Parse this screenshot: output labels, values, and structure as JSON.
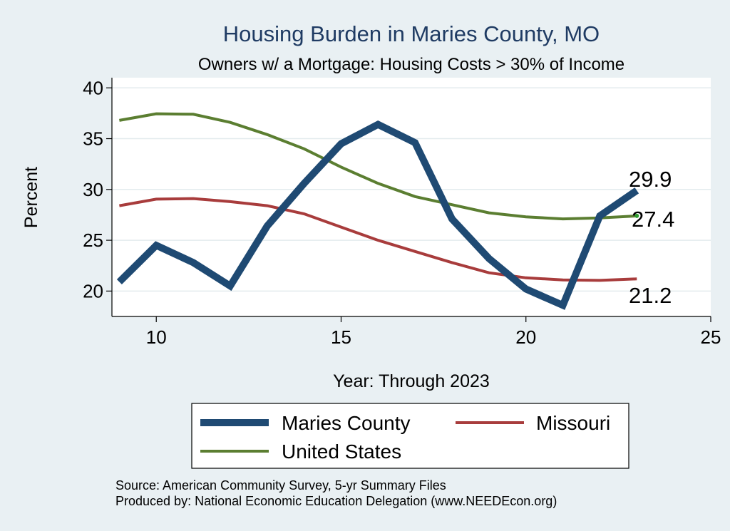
{
  "chart_data": {
    "type": "line",
    "title": "Housing Burden in Maries County, MO",
    "subtitle": "Owners w/ a Mortgage: Housing Costs > 30% of Income",
    "xlabel": "Year: Through 2023",
    "ylabel": "Percent",
    "xlim": [
      8.8,
      25
    ],
    "ylim": [
      17.5,
      41
    ],
    "xticks": [
      10,
      15,
      20,
      25
    ],
    "yticks": [
      20,
      25,
      30,
      35,
      40
    ],
    "grid": true,
    "legend_position": "bottom",
    "x": [
      9,
      10,
      11,
      12,
      13,
      14,
      15,
      16,
      17,
      18,
      19,
      20,
      21,
      22,
      23
    ],
    "series": [
      {
        "name": "Maries County",
        "color": "#1f4a73",
        "values": [
          20.9,
          24.5,
          22.8,
          20.5,
          26.4,
          30.6,
          34.5,
          36.4,
          34.6,
          27.1,
          23.2,
          20.2,
          18.6,
          27.4,
          29.9
        ],
        "end_label": "29.9"
      },
      {
        "name": "Missouri",
        "color": "#a83c3c",
        "values": [
          28.4,
          29.05,
          29.1,
          28.8,
          28.4,
          27.6,
          26.3,
          25.0,
          23.9,
          22.8,
          21.8,
          21.3,
          21.1,
          21.05,
          21.2
        ],
        "end_label": "21.2"
      },
      {
        "name": "United States",
        "color": "#5b7e31",
        "values": [
          36.8,
          37.45,
          37.4,
          36.6,
          35.4,
          34.0,
          32.2,
          30.6,
          29.3,
          28.5,
          27.7,
          27.3,
          27.1,
          27.2,
          27.4
        ],
        "end_label": "27.4"
      }
    ],
    "source_lines": [
      "Source: American Community Survey, 5-yr Summary Files",
      "Produced by: National Economic Education Delegation (www.NEEDEcon.org)"
    ]
  }
}
